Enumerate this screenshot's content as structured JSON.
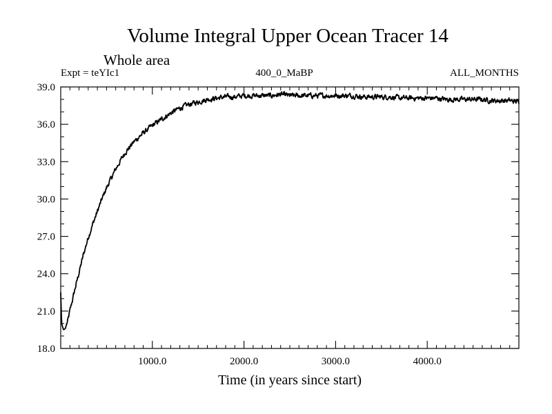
{
  "chart_data": {
    "type": "line",
    "title": "Volume Integral Upper Ocean Tracer 14",
    "subtitle": "Whole area",
    "annotations": {
      "left": "Expt = teYIc1",
      "center": "400_0_MaBP",
      "right": "ALL_MONTHS"
    },
    "xlabel": "Time (in years since start)",
    "ylabel": "",
    "xlim": [
      0,
      5000
    ],
    "ylim": [
      18.0,
      39.0
    ],
    "x_ticks_major": [
      1000,
      2000,
      3000,
      4000
    ],
    "x_tick_labels": [
      "1000.0",
      "2000.0",
      "3000.0",
      "4000.0"
    ],
    "x_ticks_minor_step": 100,
    "y_ticks_major": [
      18,
      21,
      24,
      27,
      30,
      33,
      36,
      39
    ],
    "y_tick_labels": [
      "18.0",
      "21.0",
      "24.0",
      "27.0",
      "30.0",
      "33.0",
      "36.0",
      "39.0"
    ],
    "y_ticks_minor_step": 1,
    "grid": false,
    "series": [
      {
        "name": "Tracer 14",
        "color": "#000000",
        "x": [
          0,
          10,
          30,
          50,
          80,
          100,
          150,
          200,
          250,
          300,
          350,
          400,
          450,
          500,
          600,
          700,
          800,
          900,
          1000,
          1100,
          1200,
          1300,
          1400,
          1500,
          1600,
          1700,
          1800,
          1900,
          2000,
          2100,
          2200,
          2300,
          2400,
          2500,
          2600,
          2700,
          2800,
          2900,
          3000,
          3100,
          3200,
          3300,
          3400,
          3500,
          3600,
          3700,
          3800,
          3900,
          4000,
          4100,
          4200,
          4300,
          4400,
          4500,
          4600,
          4700,
          4800,
          4900,
          5000
        ],
        "y": [
          22.5,
          20.0,
          19.5,
          19.6,
          20.3,
          21.0,
          22.6,
          24.1,
          25.6,
          26.9,
          28.0,
          29.0,
          30.0,
          30.9,
          32.4,
          33.7,
          34.6,
          35.3,
          35.9,
          36.4,
          36.9,
          37.3,
          37.6,
          37.8,
          38.0,
          38.1,
          38.2,
          38.2,
          38.3,
          38.3,
          38.3,
          38.3,
          38.4,
          38.3,
          38.3,
          38.3,
          38.3,
          38.3,
          38.3,
          38.3,
          38.3,
          38.2,
          38.2,
          38.2,
          38.2,
          38.1,
          38.1,
          38.1,
          38.1,
          38.1,
          38.0,
          38.0,
          38.0,
          38.0,
          38.0,
          37.9,
          37.9,
          37.9,
          37.8
        ]
      }
    ]
  }
}
